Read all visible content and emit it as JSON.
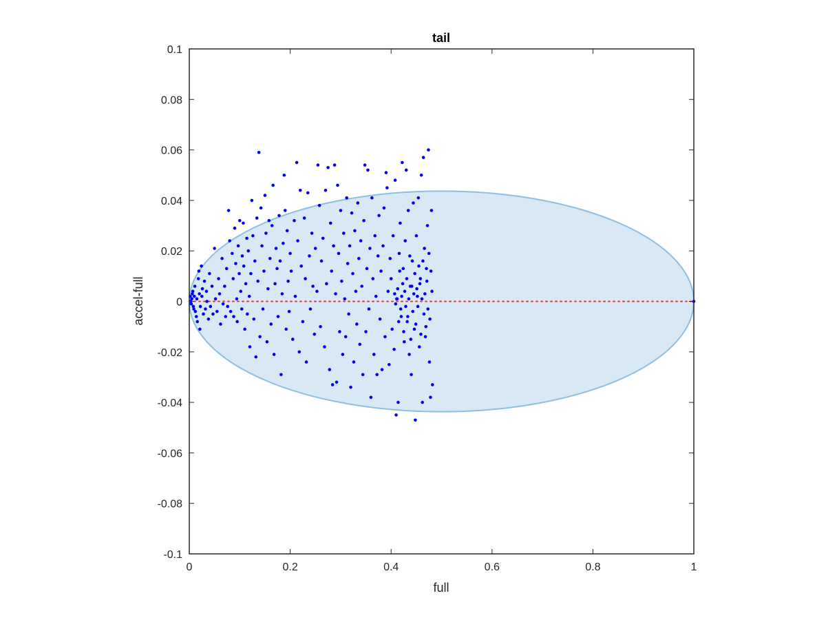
{
  "chart_data": {
    "type": "scatter",
    "title": "tail",
    "xlabel": "full",
    "ylabel": "accel-full",
    "xlim": [
      0,
      1
    ],
    "ylim": [
      -0.1,
      0.1
    ],
    "x_ticks": [
      0,
      0.2,
      0.4,
      0.6,
      0.8,
      1
    ],
    "x_tick_labels": [
      "0",
      "0.2",
      "0.4",
      "0.6",
      "0.8",
      "1"
    ],
    "y_ticks": [
      -0.1,
      -0.08,
      -0.06,
      -0.04,
      -0.02,
      0,
      0.02,
      0.04,
      0.06,
      0.08,
      0.1
    ],
    "y_tick_labels": [
      "-0.1",
      "-0.08",
      "-0.06",
      "-0.04",
      "-0.02",
      "0",
      "0.02",
      "0.04",
      "0.06",
      "0.08",
      "0.1"
    ],
    "grid": false,
    "box": true,
    "colors": {
      "points": "#0000ee",
      "ellipse_fill": "#d8e8f4",
      "ellipse_edge": "#8dbfe0",
      "reference_line": "#ff2a2a",
      "axes": "#262626"
    },
    "ellipse": {
      "center": [
        0.5,
        0
      ],
      "semi_axis_x": 0.5,
      "semi_axis_y": 0.0437
    },
    "reference_line": {
      "y": 0,
      "x_range": [
        0,
        1
      ],
      "style": "dotted"
    },
    "series": [
      {
        "points": [
          [
            0.002,
            0.002
          ],
          [
            0.004,
            -0.001
          ],
          [
            0.006,
            0.003
          ],
          [
            0.003,
            0.0
          ],
          [
            0.008,
            -0.002
          ],
          [
            0.005,
            0.001
          ],
          [
            0.01,
            0.002
          ],
          [
            0.012,
            -0.004
          ],
          [
            0.007,
            0.004
          ],
          [
            0.009,
            -0.003
          ],
          [
            0.015,
            0.001
          ],
          [
            0.011,
            0.006
          ],
          [
            0.014,
            -0.006
          ],
          [
            0.018,
            0.009
          ],
          [
            0.016,
            -0.008
          ],
          [
            0.02,
            0.003
          ],
          [
            0.022,
            -0.002
          ],
          [
            0.019,
            0.012
          ],
          [
            0.024,
            0.014
          ],
          [
            0.021,
            -0.011
          ],
          [
            0.026,
            0.005
          ],
          [
            0.028,
            -0.005
          ],
          [
            0.025,
            0.002
          ],
          [
            0.03,
            0.008
          ],
          [
            0.032,
            -0.003
          ],
          [
            0.035,
            0.0
          ],
          [
            0.034,
            0.004
          ],
          [
            0.038,
            -0.007
          ],
          [
            0.04,
            0.011
          ],
          [
            0.042,
            -0.002
          ],
          [
            0.045,
            0.006
          ],
          [
            0.047,
            -0.005
          ],
          [
            0.05,
            0.021
          ],
          [
            0.052,
            0.001
          ],
          [
            0.055,
            -0.004
          ],
          [
            0.058,
            0.009
          ],
          [
            0.06,
            0.003
          ],
          [
            0.062,
            -0.009
          ],
          [
            0.065,
            0.017
          ],
          [
            0.067,
            -0.001
          ],
          [
            0.07,
            0.006
          ],
          [
            0.072,
            -0.006
          ],
          [
            0.074,
            0.013
          ],
          [
            0.076,
            -0.002
          ],
          [
            0.078,
            0.036
          ],
          [
            0.08,
            0.024
          ],
          [
            0.082,
            -0.004
          ],
          [
            0.085,
            0.019
          ],
          [
            0.087,
            0.009
          ],
          [
            0.088,
            -0.006
          ],
          [
            0.09,
            0.029
          ],
          [
            0.092,
            0.015
          ],
          [
            0.094,
            0.001
          ],
          [
            0.095,
            -0.008
          ],
          [
            0.097,
            0.022
          ],
          [
            0.099,
            0.011
          ],
          [
            0.1,
            0.032
          ],
          [
            0.102,
            0.004
          ],
          [
            0.104,
            -0.003
          ],
          [
            0.105,
            0.018
          ],
          [
            0.107,
            0.031
          ],
          [
            0.108,
            0.014
          ],
          [
            0.11,
            -0.011
          ],
          [
            0.112,
            0.007
          ],
          [
            0.114,
            0.025
          ],
          [
            0.115,
            -0.005
          ],
          [
            0.117,
            0.02
          ],
          [
            0.119,
            0.002
          ],
          [
            0.12,
            -0.018
          ],
          [
            0.122,
            0.011
          ],
          [
            0.124,
            0.04
          ],
          [
            0.126,
            0.026
          ],
          [
            0.128,
            -0.007
          ],
          [
            0.13,
            0.016
          ],
          [
            0.132,
            -0.022
          ],
          [
            0.134,
            0.033
          ],
          [
            0.136,
            0.008
          ],
          [
            0.138,
            0.059
          ],
          [
            0.14,
            -0.014
          ],
          [
            0.142,
            0.037
          ],
          [
            0.144,
            0.022
          ],
          [
            0.146,
            -0.003
          ],
          [
            0.148,
            0.012
          ],
          [
            0.15,
            0.042
          ],
          [
            0.152,
            0.027
          ],
          [
            0.154,
            -0.016
          ],
          [
            0.156,
            0.005
          ],
          [
            0.158,
            0.032
          ],
          [
            0.16,
            0.017
          ],
          [
            0.162,
            -0.009
          ],
          [
            0.164,
            0.03
          ],
          [
            0.166,
            0.046
          ],
          [
            0.168,
            -0.021
          ],
          [
            0.17,
            0.007
          ],
          [
            0.172,
            0.021
          ],
          [
            0.174,
            0.013
          ],
          [
            0.176,
            -0.006
          ],
          [
            0.178,
            0.034
          ],
          [
            0.18,
            0.016
          ],
          [
            0.182,
            -0.029
          ],
          [
            0.184,
            0.003
          ],
          [
            0.186,
            0.023
          ],
          [
            0.188,
            0.05
          ],
          [
            0.19,
            0.036
          ],
          [
            0.192,
            -0.011
          ],
          [
            0.194,
            0.028
          ],
          [
            0.196,
            0.008
          ],
          [
            0.198,
            -0.004
          ],
          [
            0.2,
            0.019
          ],
          [
            0.202,
            0.012
          ],
          [
            0.205,
            -0.015
          ],
          [
            0.208,
            0.032
          ],
          [
            0.21,
            0.002
          ],
          [
            0.213,
            0.055
          ],
          [
            0.215,
            0.024
          ],
          [
            0.218,
            -0.02
          ],
          [
            0.22,
            0.044
          ],
          [
            0.222,
            0.014
          ],
          [
            0.225,
            -0.008
          ],
          [
            0.228,
            0.033
          ],
          [
            0.23,
            0.009
          ],
          [
            0.232,
            -0.024
          ],
          [
            0.235,
            0.043
          ],
          [
            0.238,
            0.018
          ],
          [
            0.24,
            -0.003
          ],
          [
            0.243,
            0.027
          ],
          [
            0.245,
            0.006
          ],
          [
            0.248,
            -0.013
          ],
          [
            0.25,
            0.021
          ],
          [
            0.253,
            0.004
          ],
          [
            0.255,
            0.054
          ],
          [
            0.258,
            0.038
          ],
          [
            0.26,
            -0.01
          ],
          [
            0.262,
            0.016
          ],
          [
            0.265,
            0.025
          ],
          [
            0.268,
            -0.018
          ],
          [
            0.27,
            0.044
          ],
          [
            0.272,
            0.007
          ],
          [
            0.275,
            0.053
          ],
          [
            0.278,
            -0.027
          ],
          [
            0.28,
            0.031
          ],
          [
            0.282,
            0.012
          ],
          [
            0.284,
            -0.033
          ],
          [
            0.286,
            0.022
          ],
          [
            0.288,
            0.054
          ],
          [
            0.29,
            0.003
          ],
          [
            0.292,
            -0.032
          ],
          [
            0.294,
            0.046
          ],
          [
            0.296,
            0.019
          ],
          [
            0.298,
            -0.012
          ],
          [
            0.3,
            0.036
          ],
          [
            0.302,
            0.008
          ],
          [
            0.304,
            -0.021
          ],
          [
            0.306,
            0.027
          ],
          [
            0.308,
            0.001
          ],
          [
            0.31,
            -0.014
          ],
          [
            0.312,
            0.041
          ],
          [
            0.314,
            0.015
          ],
          [
            0.316,
            -0.005
          ],
          [
            0.318,
            0.022
          ],
          [
            0.32,
            -0.034
          ],
          [
            0.322,
            0.035
          ],
          [
            0.324,
            0.011
          ],
          [
            0.326,
            -0.024
          ],
          [
            0.328,
            0.028
          ],
          [
            0.33,
            0.004
          ],
          [
            0.332,
            -0.009
          ],
          [
            0.334,
            0.039
          ],
          [
            0.336,
            0.017
          ],
          [
            0.338,
            -0.017
          ],
          [
            0.34,
            0.024
          ],
          [
            0.342,
            0.006
          ],
          [
            0.344,
            -0.029
          ],
          [
            0.346,
            0.032
          ],
          [
            0.348,
            0.054
          ],
          [
            0.35,
            -0.012
          ],
          [
            0.352,
            0.013
          ],
          [
            0.354,
            0.052
          ],
          [
            0.356,
            -0.003
          ],
          [
            0.358,
            0.021
          ],
          [
            0.36,
            -0.038
          ],
          [
            0.362,
            0.041
          ],
          [
            0.364,
            0.009
          ],
          [
            0.366,
            -0.021
          ],
          [
            0.368,
            0.026
          ],
          [
            0.37,
            0.002
          ],
          [
            0.372,
            -0.029
          ],
          [
            0.374,
            0.018
          ],
          [
            0.376,
            0.034
          ],
          [
            0.378,
            -0.007
          ],
          [
            0.38,
            0.012
          ],
          [
            0.382,
            -0.027
          ],
          [
            0.384,
            0.022
          ],
          [
            0.386,
            0.037
          ],
          [
            0.388,
            -0.014
          ],
          [
            0.39,
            0.051
          ],
          [
            0.392,
            0.045
          ],
          [
            0.394,
            0.004
          ],
          [
            0.396,
            -0.025
          ],
          [
            0.398,
            0.017
          ],
          [
            0.4,
            0.009
          ],
          [
            0.402,
            -0.011
          ],
          [
            0.404,
            0.026
          ],
          [
            0.406,
            -0.019
          ],
          [
            0.408,
            0.048
          ],
          [
            0.41,
            -0.045
          ],
          [
            0.412,
            0.001
          ],
          [
            0.414,
            -0.04
          ],
          [
            0.416,
            0.019
          ],
          [
            0.418,
            0.031
          ],
          [
            0.42,
            -0.006
          ],
          [
            0.422,
            0.055
          ],
          [
            0.424,
            0.013
          ],
          [
            0.426,
            -0.016
          ],
          [
            0.428,
            0.024
          ],
          [
            0.43,
            0.052
          ],
          [
            0.432,
            -0.008
          ],
          [
            0.434,
            0.036
          ],
          [
            0.436,
            -0.021
          ],
          [
            0.438,
            0.006
          ],
          [
            0.44,
            -0.029
          ],
          [
            0.442,
            0.016
          ],
          [
            0.444,
            0.039
          ],
          [
            0.446,
            -0.011
          ],
          [
            0.448,
            -0.047
          ],
          [
            0.45,
            0.026
          ],
          [
            0.452,
            0.002
          ],
          [
            0.454,
            0.041
          ],
          [
            0.456,
            -0.018
          ],
          [
            0.458,
            0.009
          ],
          [
            0.46,
            0.05
          ],
          [
            0.462,
            -0.04
          ],
          [
            0.464,
            0.057
          ],
          [
            0.466,
            0.021
          ],
          [
            0.468,
            -0.014
          ],
          [
            0.47,
            0.013
          ],
          [
            0.472,
            0.03
          ],
          [
            0.474,
            0.06
          ],
          [
            0.476,
            -0.024
          ],
          [
            0.478,
            -0.038
          ],
          [
            0.48,
            0.036
          ],
          [
            0.482,
            -0.033
          ],
          [
            0.481,
            0.004
          ],
          [
            0.479,
            0.012
          ],
          [
            0.477,
            -0.007
          ],
          [
            0.475,
            0.019
          ],
          [
            0.473,
            -0.003
          ],
          [
            0.471,
            0.008
          ],
          [
            0.469,
            -0.01
          ],
          [
            0.467,
            0.003
          ],
          [
            0.465,
            -0.005
          ],
          [
            0.463,
            0.016
          ],
          [
            0.461,
            0.001
          ],
          [
            0.459,
            -0.013
          ],
          [
            0.457,
            0.007
          ],
          [
            0.455,
            0.014
          ],
          [
            0.453,
            -0.002
          ],
          [
            0.451,
            0.005
          ],
          [
            0.449,
            -0.009
          ],
          [
            0.447,
            0.011
          ],
          [
            0.445,
            0.003
          ],
          [
            0.443,
            -0.004
          ],
          [
            0.441,
            0.006
          ],
          [
            0.439,
            -0.015
          ],
          [
            0.437,
            0.018
          ],
          [
            0.435,
            0.001
          ],
          [
            0.433,
            -0.006
          ],
          [
            0.431,
            0.009
          ],
          [
            0.429,
            -0.002
          ],
          [
            0.427,
            0.004
          ],
          [
            0.425,
            -0.012
          ],
          [
            0.423,
            0.007
          ],
          [
            0.421,
            0.002
          ],
          [
            0.419,
            -0.003
          ],
          [
            0.417,
            0.012
          ],
          [
            0.415,
            -0.008
          ],
          [
            0.413,
            0.005
          ],
          [
            0.411,
            0.001
          ],
          [
            0.409,
            -0.001
          ],
          [
            0.407,
            0.003
          ],
          [
            1.0,
            0.0
          ]
        ]
      }
    ]
  }
}
